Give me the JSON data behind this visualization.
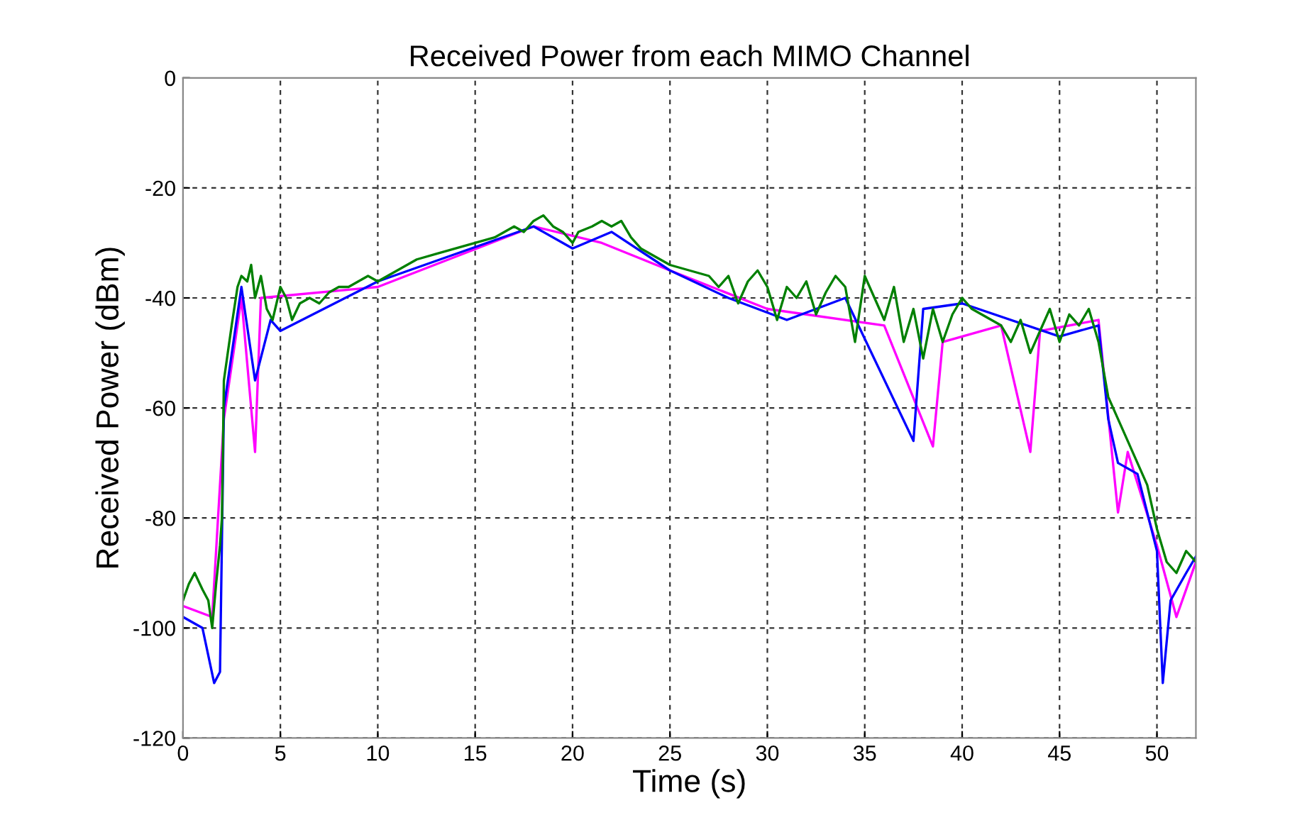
{
  "chart_data": {
    "type": "line",
    "title": "Received Power from each MIMO Channel",
    "xlabel": "Time (s)",
    "ylabel": "Received Power (dBm)",
    "xlim": [
      0,
      52
    ],
    "xticks": [
      0,
      5,
      10,
      15,
      20,
      25,
      30,
      35,
      40,
      45,
      50
    ],
    "ylim": [
      -120,
      0
    ],
    "yticks": [
      -120,
      -100,
      -80,
      -60,
      -40,
      -20,
      0
    ],
    "grid": true,
    "line_style": "solid",
    "marker": "none",
    "series": [
      {
        "color": "#ff00ff",
        "x": [
          0,
          1.5,
          2.1,
          3,
          3.7,
          4,
          10,
          18,
          21.5,
          25,
          30,
          36,
          38.5,
          39,
          42,
          43.5,
          44,
          47,
          48,
          48.5,
          50,
          51,
          52
        ],
        "values": [
          -96,
          -98,
          -62,
          -40,
          -68,
          -40,
          -38,
          -27,
          -30,
          -35,
          -42,
          -45,
          -67,
          -48,
          -45,
          -68,
          -46,
          -44,
          -79,
          -68,
          -85,
          -98,
          -88
        ]
      },
      {
        "color": "#0000ff",
        "x": [
          0,
          1,
          1.6,
          1.9,
          2.1,
          3,
          3.7,
          4.5,
          5,
          10,
          18,
          20,
          22,
          25,
          28,
          31,
          34,
          37.5,
          38,
          40,
          45,
          47,
          47.5,
          48,
          49,
          50,
          50.3,
          50.7,
          51.5,
          52
        ],
        "values": [
          -98,
          -100,
          -110,
          -108,
          -60,
          -38,
          -55,
          -44,
          -46,
          -37,
          -27,
          -31,
          -28,
          -35,
          -40,
          -44,
          -40,
          -66,
          -42,
          -41,
          -47,
          -45,
          -62,
          -70,
          -72,
          -86,
          -110,
          -95,
          -90,
          -87
        ]
      },
      {
        "color": "#008000",
        "x": [
          0,
          0.3,
          0.6,
          1.0,
          1.3,
          1.5,
          1.7,
          1.9,
          2.0,
          2.1,
          2.3,
          2.5,
          2.8,
          3.0,
          3.3,
          3.5,
          3.7,
          4.0,
          4.3,
          4.6,
          5.0,
          5.3,
          5.6,
          6.0,
          6.5,
          7.0,
          7.5,
          8.0,
          8.5,
          9.0,
          9.5,
          10,
          11,
          12,
          13,
          14,
          15,
          16,
          16.5,
          17,
          17.5,
          18,
          18.5,
          19,
          19.5,
          20,
          20.3,
          21,
          21.5,
          22,
          22.5,
          23,
          23.5,
          24,
          25,
          26,
          27,
          27.5,
          28,
          28.5,
          29,
          29.5,
          30,
          30.5,
          31,
          31.5,
          32,
          32.5,
          33,
          33.5,
          34,
          34.5,
          35,
          35.5,
          36,
          36.5,
          37,
          37.5,
          38,
          38.5,
          39,
          39.5,
          40,
          40.5,
          41,
          42,
          42.5,
          43,
          43.5,
          44,
          44.5,
          45,
          45.5,
          46,
          46.5,
          47,
          47.5,
          48,
          48.5,
          49,
          49.5,
          50,
          50.5,
          51,
          51.5,
          52
        ],
        "values": [
          -95,
          -92,
          -90,
          -93,
          -95,
          -100,
          -92,
          -85,
          -80,
          -55,
          -50,
          -45,
          -38,
          -36,
          -37,
          -34,
          -40,
          -36,
          -42,
          -44,
          -38,
          -40,
          -44,
          -41,
          -40,
          -41,
          -39,
          -38,
          -38,
          -37,
          -36,
          -37,
          -35,
          -33,
          -32,
          -31,
          -30,
          -29,
          -28,
          -27,
          -28,
          -26,
          -25,
          -27,
          -28,
          -30,
          -28,
          -27,
          -26,
          -27,
          -26,
          -29,
          -31,
          -32,
          -34,
          -35,
          -36,
          -38,
          -36,
          -41,
          -37,
          -35,
          -38,
          -44,
          -38,
          -40,
          -37,
          -43,
          -39,
          -36,
          -38,
          -48,
          -36,
          -40,
          -44,
          -38,
          -48,
          -42,
          -51,
          -42,
          -48,
          -43,
          -40,
          -42,
          -43,
          -45,
          -48,
          -44,
          -50,
          -46,
          -42,
          -48,
          -43,
          -45,
          -42,
          -48,
          -58,
          -62,
          -66,
          -70,
          -74,
          -82,
          -88,
          -90,
          -86,
          -88
        ]
      }
    ]
  }
}
